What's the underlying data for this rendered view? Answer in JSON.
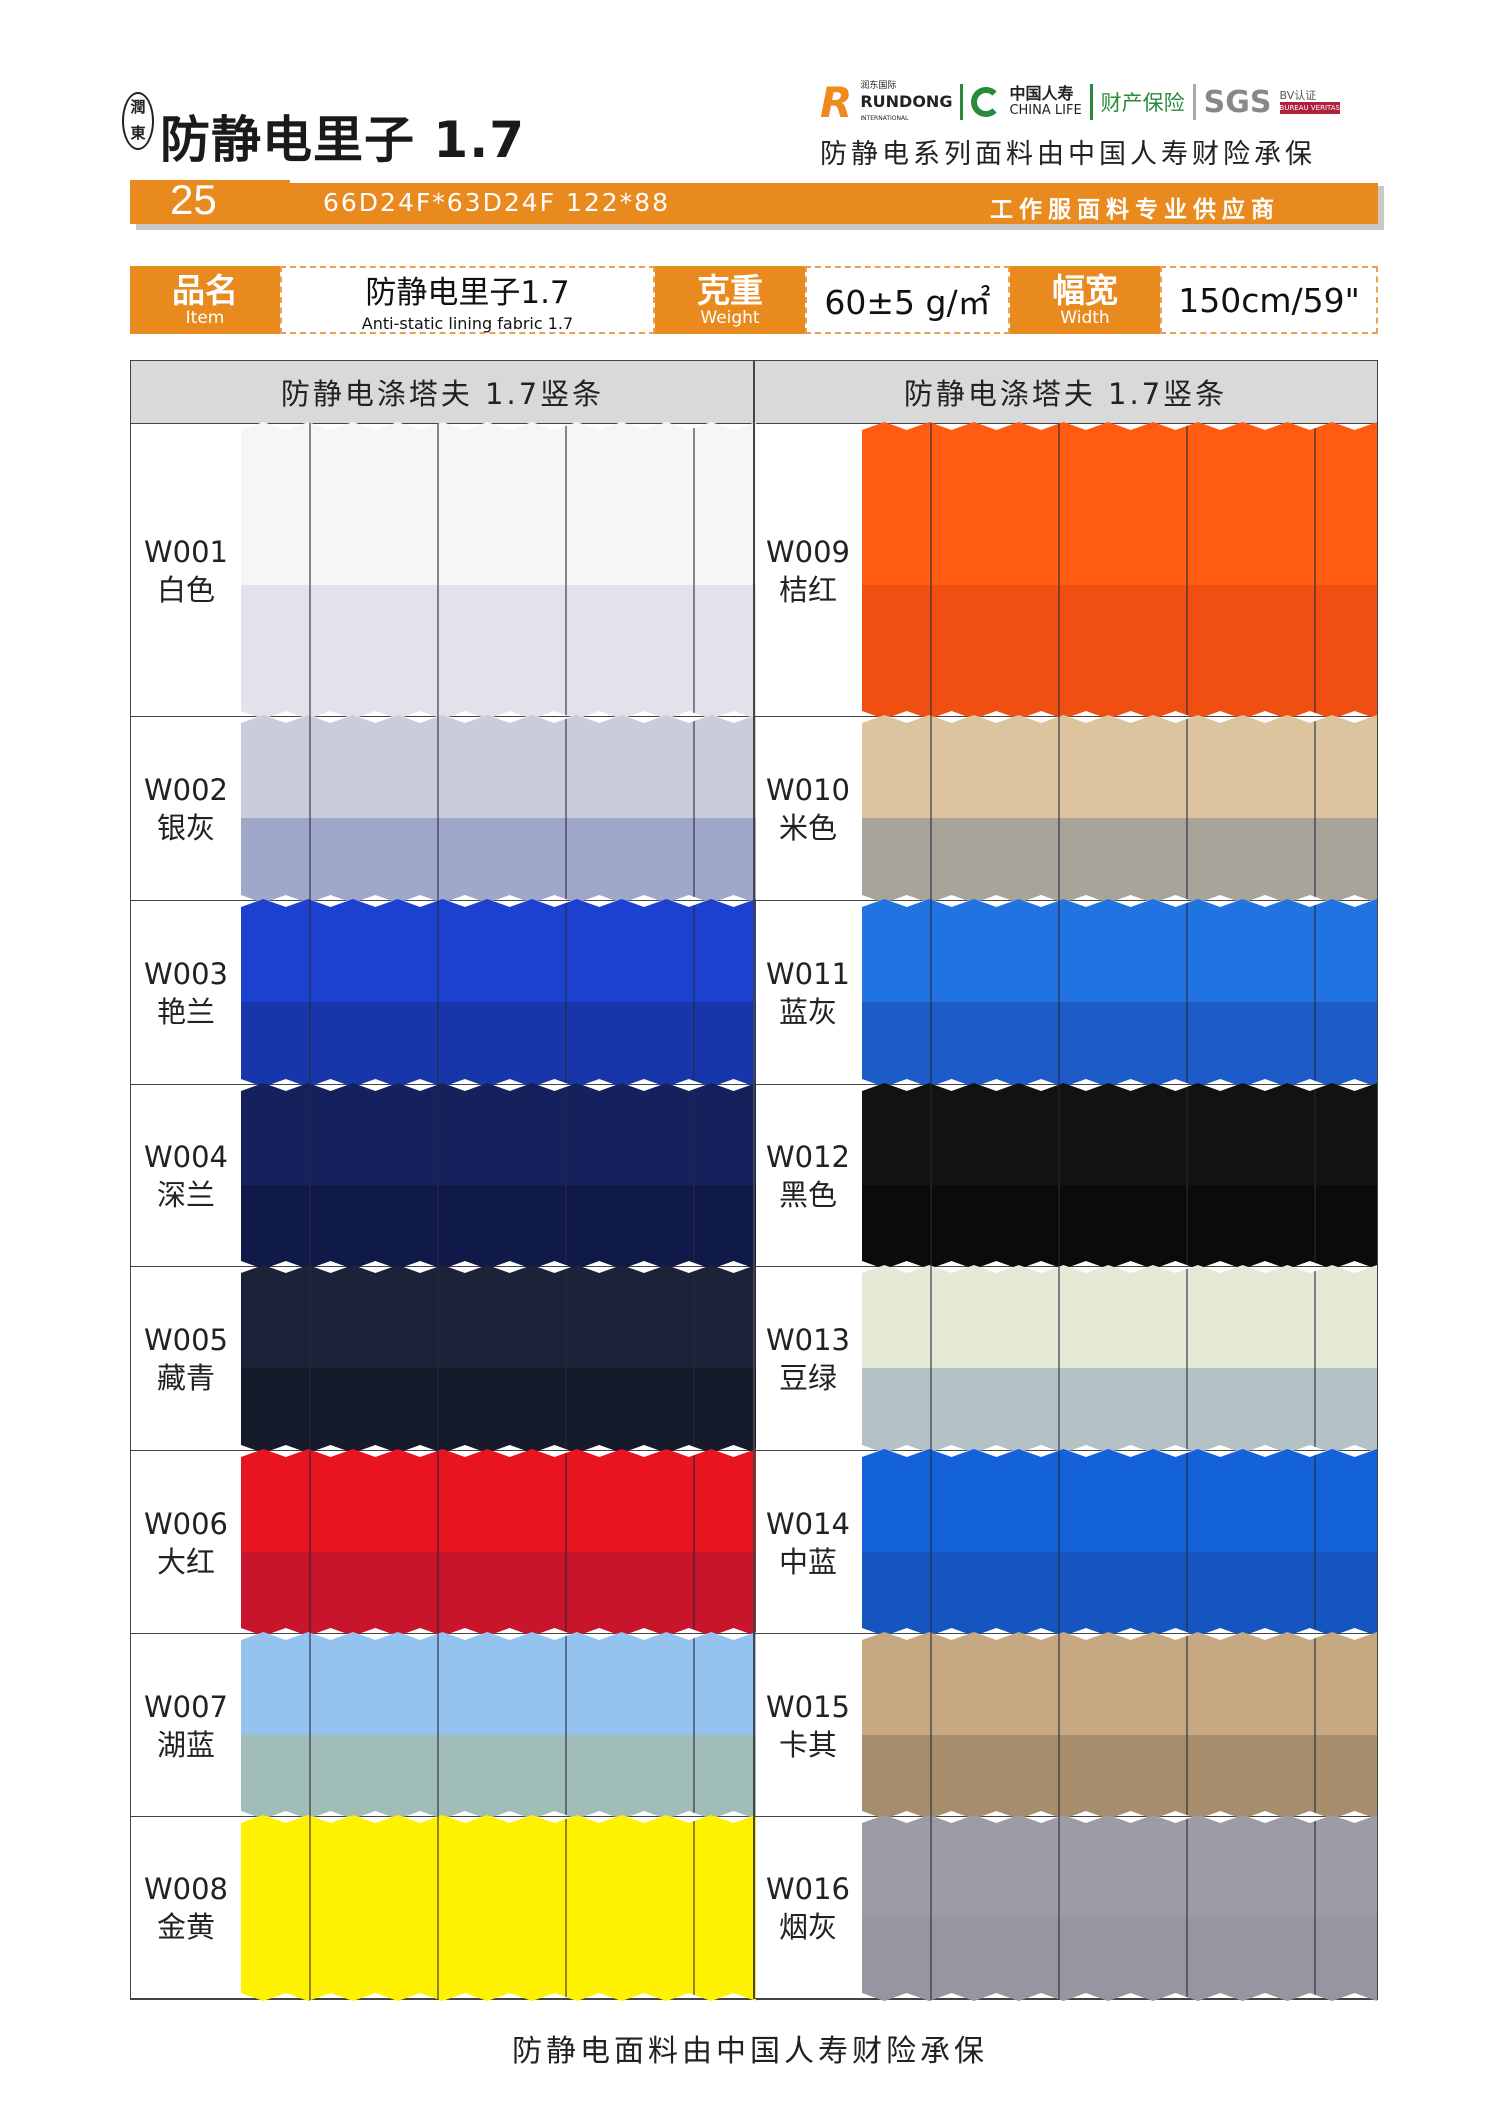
{
  "header": {
    "seal_text": "潤東",
    "title": "防静电里子 1.7",
    "logos": {
      "rundong_cn": "润东国际",
      "rundong": "RUNDONG",
      "rundong_sub": "INTERNATIONAL",
      "chinalife_cn": "中国人寿",
      "chinalife_en": "CHINA LIFE",
      "property": "财产保险",
      "sgs": "SGS",
      "bv": "BV认证",
      "bv_sub": "BUREAU VERITAS"
    },
    "insurance_note": "防静电系列面料由中国人寿财险承保"
  },
  "band": {
    "number": "25",
    "spec": "66D24F*63D24F 122*88",
    "slogan": "工作服面料专业供应商"
  },
  "info": {
    "item_label": "品名",
    "item_label_en": "Item",
    "item_value": "防静电里子1.7",
    "item_value_en": "Anti-static lining fabric 1.7",
    "weight_label": "克重",
    "weight_label_en": "Weight",
    "weight_value": "60±5 g/㎡",
    "width_label": "幅宽",
    "width_label_en": "Width",
    "width_value": "150cm/59\""
  },
  "table": {
    "columns": [
      "防静电涤塔夫 1.7竖条",
      "防静电涤塔夫 1.7竖条"
    ],
    "left": [
      {
        "code": "W001",
        "name": "白色",
        "colors": [
          "#f6f6f6",
          "#e2e2ea"
        ]
      },
      {
        "code": "W002",
        "name": "银灰",
        "colors": [
          "#cacbdb",
          "#a0a8c9"
        ]
      },
      {
        "code": "W003",
        "name": "艳兰",
        "colors": [
          "#1c40d0",
          "#1636aa"
        ]
      },
      {
        "code": "W004",
        "name": "深兰",
        "colors": [
          "#14215c",
          "#101a48"
        ]
      },
      {
        "code": "W005",
        "name": "藏青",
        "colors": [
          "#1c2338",
          "#161b2c"
        ]
      },
      {
        "code": "W006",
        "name": "大红",
        "colors": [
          "#e8141f",
          "#c8152b"
        ]
      },
      {
        "code": "W007",
        "name": "湖蓝",
        "colors": [
          "#94c3ef",
          "#a0bdb8"
        ]
      },
      {
        "code": "W008",
        "name": "金黄",
        "colors": [
          "#fff200",
          "#fff200"
        ]
      }
    ],
    "right": [
      {
        "code": "W009",
        "name": "桔红",
        "colors": [
          "#ff5b12",
          "#f04f12"
        ]
      },
      {
        "code": "W010",
        "name": "米色",
        "colors": [
          "#dcc49f",
          "#a8a49a"
        ]
      },
      {
        "code": "W011",
        "name": "蓝灰",
        "colors": [
          "#2273e2",
          "#1d5cc8"
        ]
      },
      {
        "code": "W012",
        "name": "黑色",
        "colors": [
          "#121212",
          "#0b0b0b"
        ]
      },
      {
        "code": "W013",
        "name": "豆绿",
        "colors": [
          "#e4ead6",
          "#b4c2c6"
        ]
      },
      {
        "code": "W014",
        "name": "中蓝",
        "colors": [
          "#1462d9",
          "#1455c0"
        ]
      },
      {
        "code": "W015",
        "name": "卡其",
        "colors": [
          "#c6a883",
          "#a68d6b"
        ]
      },
      {
        "code": "W016",
        "name": "烟灰",
        "colors": [
          "#9c9ca6",
          "#9696a0"
        ]
      }
    ]
  },
  "footer": "防静电面料由中国人寿财险承保"
}
